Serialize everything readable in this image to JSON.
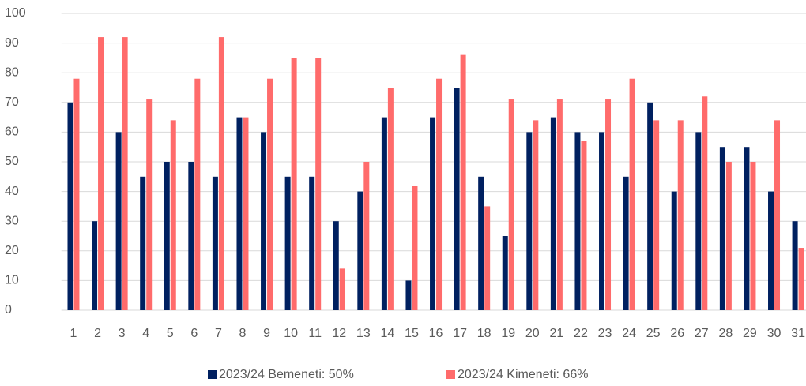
{
  "chart_data": {
    "type": "bar",
    "categories": [
      "1",
      "2",
      "3",
      "4",
      "5",
      "6",
      "7",
      "8",
      "9",
      "10",
      "11",
      "12",
      "13",
      "14",
      "15",
      "16",
      "17",
      "18",
      "19",
      "20",
      "21",
      "22",
      "23",
      "24",
      "25",
      "26",
      "27",
      "28",
      "29",
      "30",
      "31"
    ],
    "series": [
      {
        "name": "2023/24 Bemeneti: 50%",
        "color": "#002060",
        "values": [
          70,
          30,
          60,
          45,
          50,
          50,
          45,
          65,
          60,
          45,
          45,
          30,
          40,
          65,
          10,
          65,
          75,
          45,
          25,
          60,
          65,
          60,
          60,
          45,
          70,
          40,
          60,
          55,
          55,
          40,
          30
        ]
      },
      {
        "name": "2023/24 Kimeneti: 66%",
        "color": "#ff6b6b",
        "values": [
          78,
          92,
          92,
          71,
          64,
          78,
          92,
          65,
          78,
          85,
          85,
          14,
          50,
          75,
          42,
          78,
          86,
          35,
          71,
          64,
          71,
          57,
          71,
          78,
          64,
          64,
          72,
          50,
          50,
          64,
          21
        ]
      }
    ],
    "ylim": [
      0,
      100
    ],
    "yticks": [
      0,
      10,
      20,
      30,
      40,
      50,
      60,
      70,
      80,
      90,
      100
    ],
    "grid": true,
    "legend": "bottom"
  }
}
